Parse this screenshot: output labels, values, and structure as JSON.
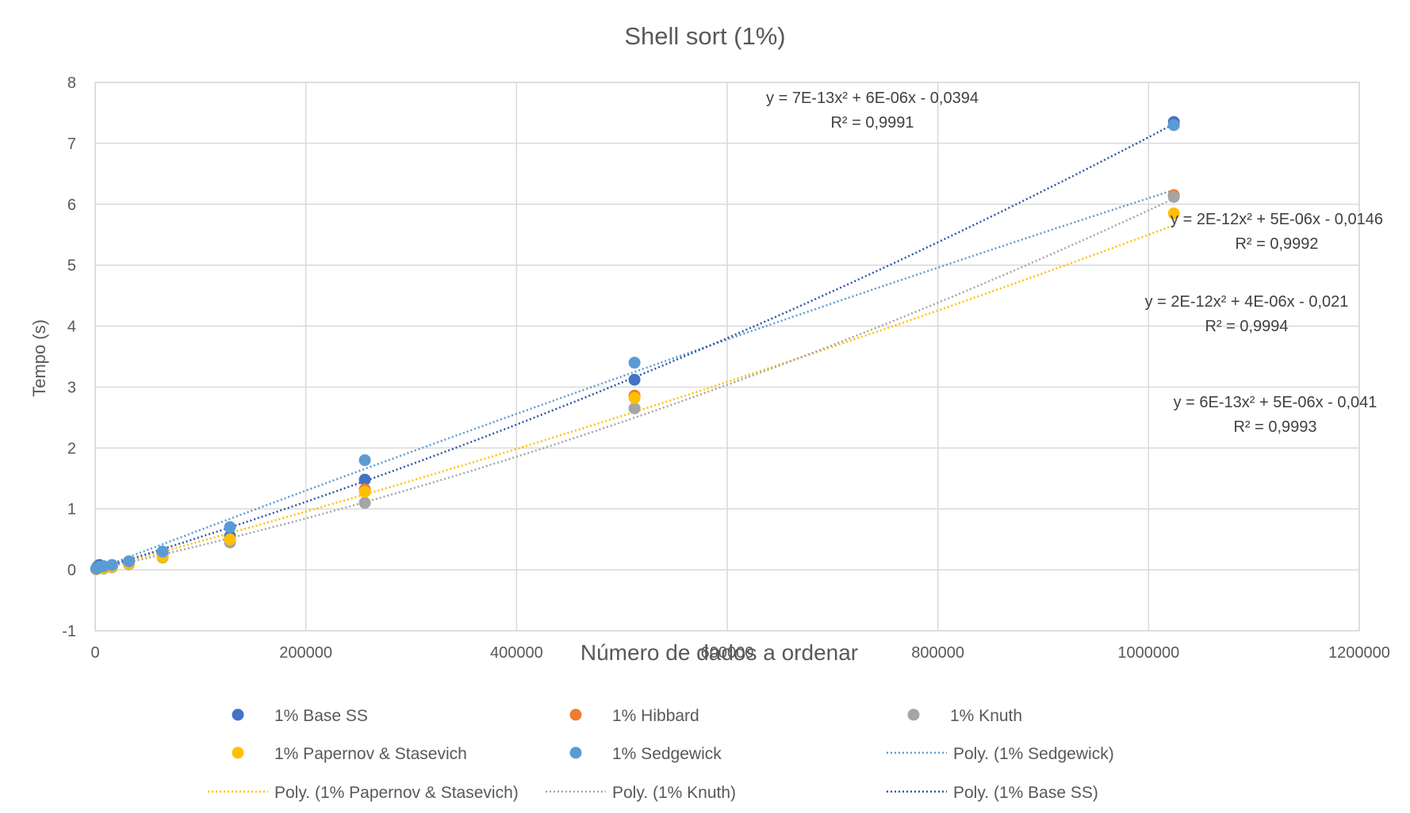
{
  "chart_data": {
    "type": "scatter",
    "title": "Shell sort (1%)",
    "xlabel": "Número de dados a ordenar",
    "ylabel": "Tempo (s)",
    "xlim": [
      0,
      1200000
    ],
    "ylim": [
      -1,
      8
    ],
    "x_ticks": [
      0,
      200000,
      400000,
      600000,
      800000,
      1000000,
      1200000
    ],
    "x_tick_labels": [
      "0",
      "200000",
      "400000",
      "600000",
      "800000",
      "1000000",
      "1200000"
    ],
    "y_ticks": [
      -1,
      0,
      1,
      2,
      3,
      4,
      5,
      6,
      7,
      8
    ],
    "y_tick_labels": [
      "-1",
      "0",
      "1",
      "2",
      "3",
      "4",
      "5",
      "6",
      "7",
      "8"
    ],
    "grid": true,
    "legend_position": "bottom",
    "series": [
      {
        "name": "1% Base SS",
        "color": "#4472C4",
        "x": [
          1000,
          2000,
          4000,
          8000,
          16000,
          32000,
          64000,
          128000,
          256000,
          512000,
          1024000
        ],
        "y": [
          0.02,
          0.05,
          0.08,
          0.04,
          0.06,
          0.12,
          0.24,
          0.55,
          1.48,
          3.12,
          7.35
        ]
      },
      {
        "name": "1% Hibbard",
        "color": "#ED7D31",
        "x": [
          1000,
          2000,
          4000,
          8000,
          16000,
          32000,
          64000,
          128000,
          256000,
          512000,
          1024000
        ],
        "y": [
          0.01,
          0.02,
          0.03,
          0.03,
          0.05,
          0.1,
          0.22,
          0.5,
          1.32,
          2.86,
          6.15
        ]
      },
      {
        "name": "1% Knuth",
        "color": "#A5A5A5",
        "x": [
          1000,
          2000,
          4000,
          8000,
          16000,
          32000,
          64000,
          128000,
          256000,
          512000,
          1024000
        ],
        "y": [
          0.01,
          0.02,
          0.03,
          0.02,
          0.04,
          0.09,
          0.2,
          0.45,
          1.1,
          2.65,
          6.12
        ]
      },
      {
        "name": "1% Papernov & Stasevich",
        "color": "#FFC000",
        "x": [
          1000,
          2000,
          4000,
          8000,
          16000,
          32000,
          64000,
          128000,
          256000,
          512000,
          1024000
        ],
        "y": [
          0.01,
          0.02,
          0.03,
          0.03,
          0.05,
          0.1,
          0.21,
          0.5,
          1.28,
          2.82,
          5.85
        ]
      },
      {
        "name": "1% Sedgewick",
        "color": "#5B9BD5",
        "x": [
          1000,
          2000,
          4000,
          8000,
          16000,
          32000,
          64000,
          128000,
          256000,
          512000,
          1024000
        ],
        "y": [
          0.02,
          0.03,
          0.05,
          0.06,
          0.08,
          0.14,
          0.3,
          0.7,
          1.8,
          3.4,
          7.3
        ]
      }
    ],
    "trendlines": [
      {
        "name": "Poly. (1% Sedgewick)",
        "color": "#5B9BD5",
        "x_range": [
          0,
          1024000
        ],
        "coefficients": [
          0.0,
          6.6e-06,
          -5e-13
        ]
      },
      {
        "name": "Poly. (1% Papernov & Stasevich)",
        "color": "#FFC000",
        "x_range": [
          0,
          1024000
        ],
        "coefficients": [
          0.0,
          4.6e-06,
          9e-13
        ]
      },
      {
        "name": "Poly. (1% Knuth)",
        "color": "#A5A5A5",
        "x_range": [
          0,
          1024000
        ],
        "coefficients": [
          0.0,
          3.8e-06,
          2.1e-12
        ]
      },
      {
        "name": "Poly. (1% Base SS)",
        "color": "#2E54A8",
        "x_range": [
          0,
          1024000
        ],
        "coefficients": [
          0.0,
          5.2e-06,
          1.9e-12
        ]
      }
    ],
    "equations": [
      {
        "eq": "y = 7E-13x² + 6E-06x - 0,0394",
        "r2": "R² = 0,9991"
      },
      {
        "eq": "y = 2E-12x² + 5E-06x - 0,0146",
        "r2": "R² = 0,9992"
      },
      {
        "eq": "y = 2E-12x² + 4E-06x - 0,021",
        "r2": "R² = 0,9994"
      },
      {
        "eq": "y = 6E-13x² + 5E-06x - 0,041",
        "r2": "R² = 0,9993"
      }
    ]
  }
}
